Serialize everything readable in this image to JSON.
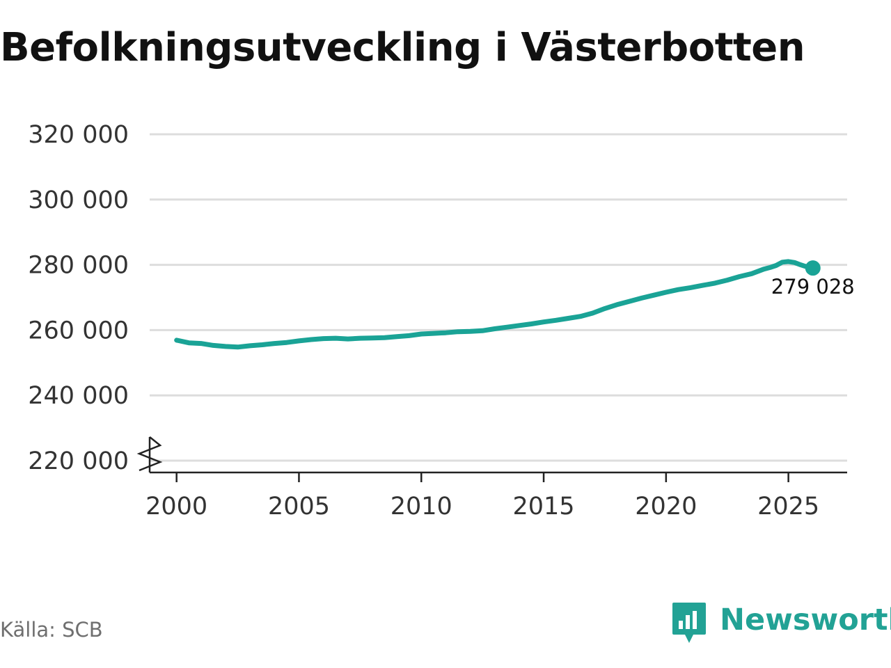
{
  "title": "Befolkningsutveckling i Västerbotten",
  "source": "Källa: SCB",
  "brand": {
    "name": "Newsworthy",
    "icon": "newsworthy-logo-icon",
    "color": "#22a295"
  },
  "colors": {
    "line": "#1aa396",
    "grid": "#dddddd",
    "axis": "#222222",
    "text": "#333333"
  },
  "chart_data": {
    "type": "line",
    "title": "Befolkningsutveckling i Västerbotten",
    "xlabel": "",
    "ylabel": "",
    "xlim": [
      1998.9,
      2027.4
    ],
    "ylim": [
      220000,
      320000
    ],
    "axis_break": true,
    "grid": true,
    "x_ticks": [
      2000,
      2005,
      2010,
      2015,
      2020,
      2025
    ],
    "x_tick_labels": [
      "2000",
      "2005",
      "2010",
      "2015",
      "2020",
      "2025"
    ],
    "y_ticks": [
      220000,
      240000,
      260000,
      280000,
      300000,
      320000
    ],
    "y_tick_labels": [
      "220 000",
      "240 000",
      "260 000",
      "280 000",
      "300 000",
      "320 000"
    ],
    "series": [
      {
        "name": "",
        "x": [
          2000.0,
          2000.5,
          2001.0,
          2001.5,
          2002.0,
          2002.5,
          2003.0,
          2003.5,
          2004.0,
          2004.5,
          2005.0,
          2005.5,
          2006.0,
          2006.5,
          2007.0,
          2007.5,
          2008.0,
          2008.5,
          2009.0,
          2009.5,
          2010.0,
          2010.5,
          2011.0,
          2011.5,
          2012.0,
          2012.5,
          2013.0,
          2013.5,
          2014.0,
          2014.5,
          2015.0,
          2015.5,
          2016.0,
          2016.5,
          2017.0,
          2017.5,
          2018.0,
          2018.5,
          2019.0,
          2019.5,
          2020.0,
          2020.5,
          2021.0,
          2021.5,
          2022.0,
          2022.5,
          2023.0,
          2023.5,
          2024.0,
          2024.25,
          2024.5,
          2024.75,
          2025.0,
          2025.25,
          2025.5,
          2025.75,
          2026.0
        ],
        "y": [
          256900,
          256100,
          255900,
          255300,
          255000,
          254800,
          255200,
          255500,
          255900,
          256200,
          256700,
          257100,
          257400,
          257500,
          257300,
          257500,
          257600,
          257700,
          258000,
          258300,
          258800,
          259000,
          259200,
          259500,
          259600,
          259800,
          260400,
          260900,
          261400,
          261900,
          262500,
          263000,
          263600,
          264200,
          265200,
          266600,
          267800,
          268800,
          269800,
          270700,
          271600,
          272400,
          273000,
          273700,
          274400,
          275300,
          276400,
          277300,
          278700,
          279200,
          279800,
          280800,
          281000,
          280700,
          280000,
          279400,
          279028
        ]
      }
    ],
    "annotations": [
      {
        "text": "279 028",
        "x": 2026.0,
        "y": 279028
      }
    ]
  }
}
